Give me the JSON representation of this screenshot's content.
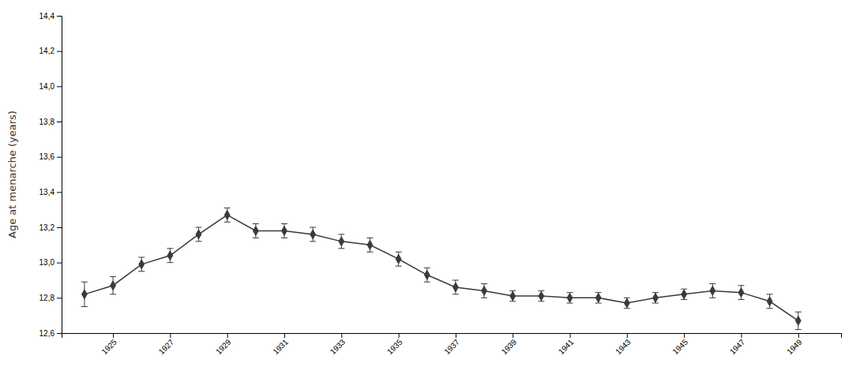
{
  "chart_data": {
    "type": "line",
    "x": [
      1924,
      1925,
      1926,
      1927,
      1928,
      1929,
      1930,
      1931,
      1932,
      1933,
      1934,
      1935,
      1936,
      1937,
      1938,
      1939,
      1940,
      1941,
      1942,
      1943,
      1944,
      1945,
      1946,
      1947,
      1948,
      1949
    ],
    "values": [
      12.82,
      12.87,
      12.99,
      13.04,
      13.16,
      13.27,
      13.18,
      13.18,
      13.16,
      13.12,
      13.1,
      13.02,
      12.93,
      12.86,
      12.84,
      12.81,
      12.81,
      12.8,
      12.8,
      12.77,
      12.8,
      12.82,
      12.84,
      12.83,
      12.78,
      12.67
    ],
    "errors": [
      0.07,
      0.05,
      0.04,
      0.04,
      0.04,
      0.04,
      0.04,
      0.04,
      0.04,
      0.04,
      0.04,
      0.04,
      0.04,
      0.04,
      0.04,
      0.03,
      0.03,
      0.03,
      0.03,
      0.03,
      0.03,
      0.03,
      0.04,
      0.04,
      0.04,
      0.05
    ],
    "ylabel": "Age at menarche (years)",
    "xlim": [
      1923.2,
      1950.5
    ],
    "xticks": [
      1925,
      1927,
      1929,
      1931,
      1933,
      1935,
      1937,
      1939,
      1941,
      1943,
      1945,
      1947,
      1949
    ],
    "ylim": [
      12.6,
      14.4
    ],
    "yticks": [
      {
        "value": 12.6,
        "label": "12,6"
      },
      {
        "value": 12.8,
        "label": "12,8"
      },
      {
        "value": 13.0,
        "label": "13,0"
      },
      {
        "value": 13.2,
        "label": "13,2"
      },
      {
        "value": 13.4,
        "label": "13,4"
      },
      {
        "value": 13.6,
        "label": "13,6"
      },
      {
        "value": 13.8,
        "label": "13,8"
      },
      {
        "value": 14.0,
        "label": "14,0"
      },
      {
        "value": 14.2,
        "label": "14,2"
      },
      {
        "value": 14.4,
        "label": "14,4"
      }
    ],
    "color": "#3a3a3a",
    "marker": "diamond",
    "grid": false
  }
}
